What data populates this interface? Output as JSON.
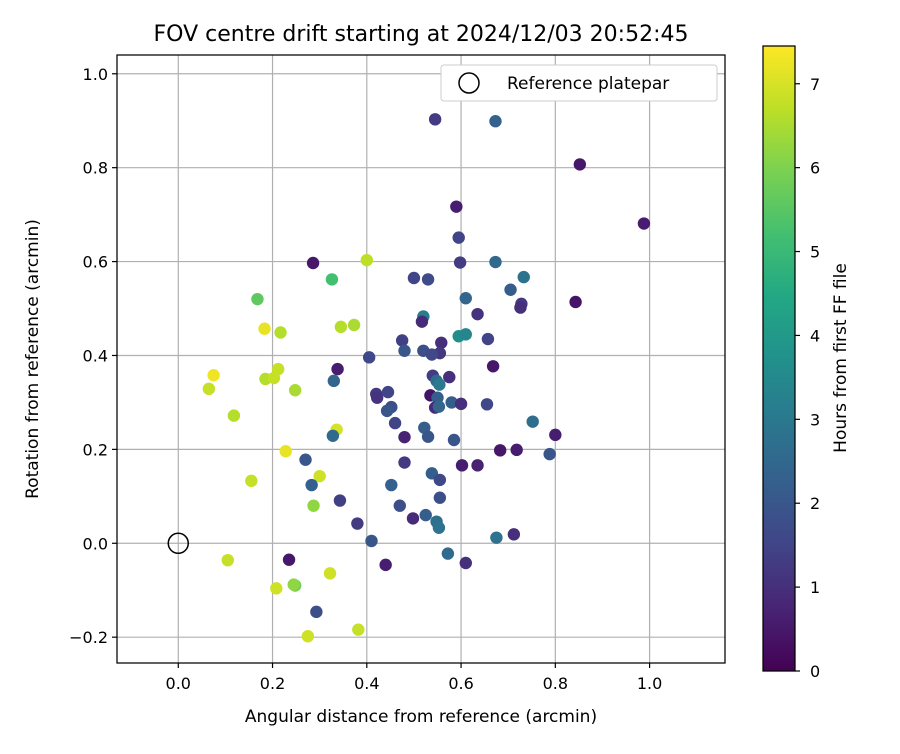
{
  "chart_data": {
    "type": "scatter",
    "title": "FOV centre drift starting at 2024/12/03 20:52:45",
    "xlabel": "Angular distance from reference (arcmin)",
    "ylabel": "Rotation from reference (arcmin)",
    "xlim": [
      -0.13,
      1.16
    ],
    "ylim": [
      -0.255,
      1.04
    ],
    "grid": true,
    "x_ticks": [
      {
        "v": 0.0,
        "label": "0.0"
      },
      {
        "v": 0.2,
        "label": "0.2"
      },
      {
        "v": 0.4,
        "label": "0.4"
      },
      {
        "v": 0.6,
        "label": "0.6"
      },
      {
        "v": 0.8,
        "label": "0.8"
      },
      {
        "v": 1.0,
        "label": "1.0"
      }
    ],
    "y_ticks": [
      {
        "v": -0.2,
        "label": "−0.2"
      },
      {
        "v": 0.0,
        "label": "0.0"
      },
      {
        "v": 0.2,
        "label": "0.2"
      },
      {
        "v": 0.4,
        "label": "0.4"
      },
      {
        "v": 0.6,
        "label": "0.6"
      },
      {
        "v": 0.8,
        "label": "0.8"
      },
      {
        "v": 1.0,
        "label": "1.0"
      }
    ],
    "colorbar": {
      "label": "Hours from first FF file",
      "range": [
        0,
        7.45
      ],
      "colormap": "viridis",
      "ticks": [
        {
          "v": 0,
          "label": "0"
        },
        {
          "v": 1,
          "label": "1"
        },
        {
          "v": 2,
          "label": "2"
        },
        {
          "v": 3,
          "label": "3"
        },
        {
          "v": 4,
          "label": "4"
        },
        {
          "v": 5,
          "label": "5"
        },
        {
          "v": 6,
          "label": "6"
        },
        {
          "v": 7,
          "label": "7"
        }
      ]
    },
    "legend": {
      "placement": "top-right",
      "entries": [
        {
          "label": "Reference platepar",
          "marker": "open-circle"
        }
      ]
    },
    "reference_point": {
      "x": 0.0,
      "y": 0.0
    },
    "points": [
      {
        "x": 0.545,
        "y": 0.903,
        "h": 1.3
      },
      {
        "x": 0.673,
        "y": 0.899,
        "h": 2.3
      },
      {
        "x": 0.852,
        "y": 0.807,
        "h": 0.5
      },
      {
        "x": 0.59,
        "y": 0.717,
        "h": 0.6
      },
      {
        "x": 0.988,
        "y": 0.681,
        "h": 0.6
      },
      {
        "x": 0.595,
        "y": 0.651,
        "h": 1.5
      },
      {
        "x": 0.4,
        "y": 0.603,
        "h": 6.7
      },
      {
        "x": 0.286,
        "y": 0.597,
        "h": 0.5
      },
      {
        "x": 0.598,
        "y": 0.598,
        "h": 1.3
      },
      {
        "x": 0.673,
        "y": 0.599,
        "h": 2.5
      },
      {
        "x": 0.326,
        "y": 0.562,
        "h": 5.2
      },
      {
        "x": 0.733,
        "y": 0.567,
        "h": 2.8
      },
      {
        "x": 0.5,
        "y": 0.565,
        "h": 1.5
      },
      {
        "x": 0.53,
        "y": 0.562,
        "h": 1.7
      },
      {
        "x": 0.705,
        "y": 0.54,
        "h": 2.2
      },
      {
        "x": 0.168,
        "y": 0.52,
        "h": 5.6
      },
      {
        "x": 0.61,
        "y": 0.522,
        "h": 2.4
      },
      {
        "x": 0.843,
        "y": 0.514,
        "h": 0.4
      },
      {
        "x": 0.728,
        "y": 0.51,
        "h": 1.2
      },
      {
        "x": 0.726,
        "y": 0.502,
        "h": 1.0
      },
      {
        "x": 0.635,
        "y": 0.488,
        "h": 1.1
      },
      {
        "x": 0.52,
        "y": 0.483,
        "h": 3.2
      },
      {
        "x": 0.517,
        "y": 0.472,
        "h": 0.9
      },
      {
        "x": 0.373,
        "y": 0.465,
        "h": 6.5
      },
      {
        "x": 0.345,
        "y": 0.461,
        "h": 6.6
      },
      {
        "x": 0.183,
        "y": 0.457,
        "h": 7.2
      },
      {
        "x": 0.217,
        "y": 0.449,
        "h": 6.6
      },
      {
        "x": 0.595,
        "y": 0.441,
        "h": 3.6
      },
      {
        "x": 0.61,
        "y": 0.445,
        "h": 3.4
      },
      {
        "x": 0.657,
        "y": 0.435,
        "h": 1.5
      },
      {
        "x": 0.475,
        "y": 0.432,
        "h": 1.4
      },
      {
        "x": 0.558,
        "y": 0.427,
        "h": 1.0
      },
      {
        "x": 0.48,
        "y": 0.41,
        "h": 2.0
      },
      {
        "x": 0.52,
        "y": 0.41,
        "h": 1.8
      },
      {
        "x": 0.555,
        "y": 0.405,
        "h": 1.2
      },
      {
        "x": 0.538,
        "y": 0.402,
        "h": 1.6
      },
      {
        "x": 0.405,
        "y": 0.396,
        "h": 1.6
      },
      {
        "x": 0.668,
        "y": 0.377,
        "h": 0.5
      },
      {
        "x": 0.338,
        "y": 0.371,
        "h": 0.6
      },
      {
        "x": 0.212,
        "y": 0.371,
        "h": 6.8
      },
      {
        "x": 0.075,
        "y": 0.358,
        "h": 7.3
      },
      {
        "x": 0.54,
        "y": 0.357,
        "h": 1.3
      },
      {
        "x": 0.575,
        "y": 0.354,
        "h": 1.0
      },
      {
        "x": 0.185,
        "y": 0.35,
        "h": 6.6
      },
      {
        "x": 0.203,
        "y": 0.352,
        "h": 6.8
      },
      {
        "x": 0.33,
        "y": 0.346,
        "h": 2.4
      },
      {
        "x": 0.548,
        "y": 0.346,
        "h": 2.6
      },
      {
        "x": 0.554,
        "y": 0.338,
        "h": 3.0
      },
      {
        "x": 0.065,
        "y": 0.329,
        "h": 6.8
      },
      {
        "x": 0.248,
        "y": 0.326,
        "h": 6.5
      },
      {
        "x": 0.42,
        "y": 0.318,
        "h": 1.2
      },
      {
        "x": 0.445,
        "y": 0.322,
        "h": 1.5
      },
      {
        "x": 0.535,
        "y": 0.315,
        "h": 0.4
      },
      {
        "x": 0.55,
        "y": 0.31,
        "h": 2.2
      },
      {
        "x": 0.422,
        "y": 0.31,
        "h": 1.1
      },
      {
        "x": 0.58,
        "y": 0.3,
        "h": 2.2
      },
      {
        "x": 0.6,
        "y": 0.297,
        "h": 1.0
      },
      {
        "x": 0.655,
        "y": 0.296,
        "h": 1.6
      },
      {
        "x": 0.545,
        "y": 0.289,
        "h": 0.9
      },
      {
        "x": 0.553,
        "y": 0.291,
        "h": 2.4
      },
      {
        "x": 0.452,
        "y": 0.29,
        "h": 1.8
      },
      {
        "x": 0.443,
        "y": 0.282,
        "h": 2.0
      },
      {
        "x": 0.118,
        "y": 0.272,
        "h": 6.6
      },
      {
        "x": 0.752,
        "y": 0.259,
        "h": 2.7
      },
      {
        "x": 0.46,
        "y": 0.256,
        "h": 1.5
      },
      {
        "x": 0.522,
        "y": 0.246,
        "h": 2.2
      },
      {
        "x": 0.336,
        "y": 0.242,
        "h": 7.0
      },
      {
        "x": 0.328,
        "y": 0.229,
        "h": 2.6
      },
      {
        "x": 0.53,
        "y": 0.227,
        "h": 2.0
      },
      {
        "x": 0.48,
        "y": 0.226,
        "h": 0.7
      },
      {
        "x": 0.8,
        "y": 0.231,
        "h": 0.6
      },
      {
        "x": 0.585,
        "y": 0.22,
        "h": 2.0
      },
      {
        "x": 0.228,
        "y": 0.196,
        "h": 7.2
      },
      {
        "x": 0.683,
        "y": 0.198,
        "h": 0.5
      },
      {
        "x": 0.718,
        "y": 0.199,
        "h": 0.6
      },
      {
        "x": 0.788,
        "y": 0.19,
        "h": 2.0
      },
      {
        "x": 0.27,
        "y": 0.178,
        "h": 2.0
      },
      {
        "x": 0.48,
        "y": 0.172,
        "h": 1.2
      },
      {
        "x": 0.602,
        "y": 0.166,
        "h": 0.6
      },
      {
        "x": 0.635,
        "y": 0.166,
        "h": 0.7
      },
      {
        "x": 0.538,
        "y": 0.149,
        "h": 2.2
      },
      {
        "x": 0.3,
        "y": 0.143,
        "h": 6.9
      },
      {
        "x": 0.555,
        "y": 0.135,
        "h": 1.6
      },
      {
        "x": 0.155,
        "y": 0.133,
        "h": 6.8
      },
      {
        "x": 0.452,
        "y": 0.124,
        "h": 2.3
      },
      {
        "x": 0.283,
        "y": 0.124,
        "h": 2.3
      },
      {
        "x": 0.555,
        "y": 0.097,
        "h": 1.8
      },
      {
        "x": 0.343,
        "y": 0.091,
        "h": 1.4
      },
      {
        "x": 0.287,
        "y": 0.08,
        "h": 6.2
      },
      {
        "x": 0.47,
        "y": 0.08,
        "h": 1.8
      },
      {
        "x": 0.498,
        "y": 0.053,
        "h": 0.9
      },
      {
        "x": 0.525,
        "y": 0.06,
        "h": 2.2
      },
      {
        "x": 0.548,
        "y": 0.046,
        "h": 2.7
      },
      {
        "x": 0.38,
        "y": 0.042,
        "h": 1.3
      },
      {
        "x": 0.553,
        "y": 0.033,
        "h": 2.8
      },
      {
        "x": 0.712,
        "y": 0.019,
        "h": 1.0
      },
      {
        "x": 0.675,
        "y": 0.012,
        "h": 2.8
      },
      {
        "x": 0.41,
        "y": 0.005,
        "h": 2.0
      },
      {
        "x": 0.572,
        "y": -0.022,
        "h": 2.6
      },
      {
        "x": 0.105,
        "y": -0.036,
        "h": 6.8
      },
      {
        "x": 0.235,
        "y": -0.035,
        "h": 0.5
      },
      {
        "x": 0.44,
        "y": -0.046,
        "h": 0.6
      },
      {
        "x": 0.61,
        "y": -0.042,
        "h": 1.0
      },
      {
        "x": 0.322,
        "y": -0.064,
        "h": 6.9
      },
      {
        "x": 0.248,
        "y": -0.09,
        "h": 5.8
      },
      {
        "x": 0.245,
        "y": -0.088,
        "h": 6.2
      },
      {
        "x": 0.208,
        "y": -0.096,
        "h": 6.9
      },
      {
        "x": 0.293,
        "y": -0.146,
        "h": 1.8
      },
      {
        "x": 0.382,
        "y": -0.184,
        "h": 6.8
      },
      {
        "x": 0.275,
        "y": -0.198,
        "h": 6.9
      }
    ]
  }
}
